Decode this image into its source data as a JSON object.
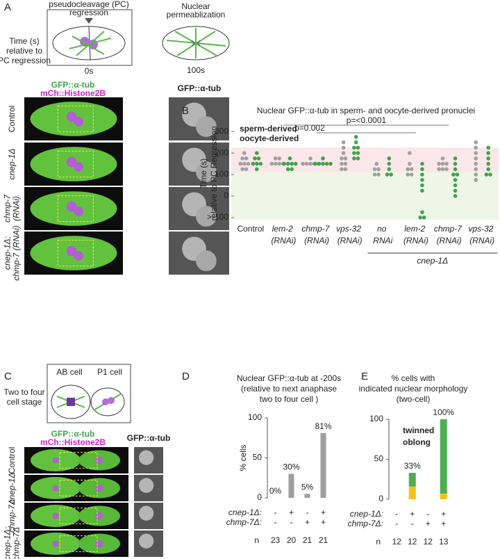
{
  "panel_a": {
    "letter": "A",
    "schematic_left": {
      "title": [
        "pseudocleavage (PC)",
        "regression"
      ],
      "time": "0s"
    },
    "schematic_right": {
      "title": [
        "Nuclear",
        "permeablization"
      ],
      "time": "100s"
    },
    "time_label": [
      "Time (s)",
      "relative to",
      "PC regression"
    ],
    "channel_labels": [
      "GFP::α-tub",
      "mCh::Histone2B"
    ],
    "right_column_label": "GFP::α-tub",
    "rows": [
      [
        "Control"
      ],
      [
        "cnep-1Δ"
      ],
      [
        "chmp-7",
        "(RNAi)"
      ],
      [
        "cnep-1Δ;",
        "chmp-7 (RNAi)"
      ]
    ]
  },
  "panel_c": {
    "letter": "C",
    "schematic": {
      "cells": [
        "AB cell",
        "P1 cell"
      ]
    },
    "stage_label": [
      "Two to four",
      "cell stage"
    ],
    "channel_labels": [
      "GFP::α-tub",
      "mCh::Histone2B"
    ],
    "right_column_label": "GFP::α-tub",
    "rows": [
      [
        "Control"
      ],
      [
        "cnep-1Δ"
      ],
      [
        "chmp-7Δ"
      ],
      [
        "cnep-1Δ;",
        "chmp-7Δ"
      ]
    ]
  },
  "chart_data": [
    {
      "panel": "B",
      "type": "strip",
      "title": "Nuclear GFP::α-tub in sperm- and oocyte-derived pronuclei",
      "ylabel": [
        "Time (s)",
        "relative to PC Regression"
      ],
      "categories": [
        "Control",
        "lem-2 (RNAi)",
        "chmp-7 (RNAi)",
        "vps-32 (RNAi)",
        "no RNAi",
        "lem-2 (RNAi)",
        "chmp-7 (RNAi)",
        "vps-32 (RNAi)"
      ],
      "group": {
        "label": "cnep-1Δ",
        "from": 4,
        "to": 7
      },
      "ylim": [
        -110,
        320
      ],
      "yticks": [
        {
          "value": -100,
          "label": ">-100"
        },
        0,
        100,
        200,
        300
      ],
      "bands": [
        {
          "from": 110,
          "to": 225,
          "color": "#fbe6ea"
        },
        {
          "from": -110,
          "to": 110,
          "color": "#eef6e6"
        }
      ],
      "series": [
        {
          "name": "sperm-derived",
          "color": "#a0a0a0",
          "values": [
            [
              200,
              175,
              175,
              150,
              150,
              150,
              125,
              125
            ],
            [
              175,
              175,
              150,
              150,
              150,
              150
            ],
            [
              175,
              150,
              150,
              150,
              150,
              150
            ],
            [
              250,
              225,
              200,
              175,
              175,
              150,
              150,
              125,
              125
            ],
            [
              150,
              125,
              125,
              100,
              100
            ],
            [
              200,
              150,
              125,
              125,
              100,
              100
            ],
            [
              175,
              150,
              150,
              150,
              125,
              125,
              125
            ],
            [
              250,
              225,
              200,
              175,
              150,
              125,
              100,
              75
            ]
          ]
        },
        {
          "name": "oocyte-derived",
          "color": "#3fa34d",
          "values": [
            [
              200,
              175,
              175,
              150,
              150,
              150,
              125
            ],
            [
              175,
              150,
              150,
              150,
              150,
              125,
              125
            ],
            [
              175,
              150,
              150,
              150,
              150,
              150
            ],
            [
              275,
              250,
              225,
              225,
              200,
              200,
              175,
              175
            ],
            [
              175,
              150,
              125,
              100,
              100
            ],
            [
              150,
              125,
              100,
              75,
              50,
              25,
              -75,
              -100,
              -100
            ],
            [
              175,
              150,
              125,
              100,
              100,
              75,
              50,
              25,
              0
            ],
            [
              225,
              200,
              175,
              150,
              125,
              100,
              100
            ]
          ]
        }
      ],
      "annotations": [
        {
          "text": "p=<0.0001",
          "from": 1,
          "to": 6
        },
        {
          "text": "p=0.002",
          "from": 2,
          "to": 5
        }
      ]
    },
    {
      "panel": "D",
      "type": "bar",
      "title": [
        "Nuclear GFP::α-tub at -200s",
        "(relative to next anaphase",
        "two to four cell )"
      ],
      "ylabel": "% cells",
      "categories": [
        null,
        null,
        null,
        null
      ],
      "values": [
        0,
        30,
        5,
        81
      ],
      "value_labels": [
        "0%",
        "30%",
        "5%",
        "81%"
      ],
      "color": "#9e9e9e",
      "ylim": [
        0,
        100
      ],
      "yticks": [
        0,
        50,
        100
      ],
      "genotypes": [
        {
          "label": "cnep-1Δ:",
          "marks": [
            "-",
            "+",
            "-",
            "+"
          ]
        },
        {
          "label": "chmp-7Δ:",
          "marks": [
            "-",
            "-",
            "+",
            "+"
          ]
        }
      ],
      "n_label": "n",
      "n": [
        23,
        20,
        21,
        21
      ]
    },
    {
      "panel": "E",
      "type": "stacked_bar",
      "title": [
        "% cells with",
        "indicated nuclear morphology",
        "(two-cell)"
      ],
      "categories": [
        null,
        null,
        null,
        null
      ],
      "series": [
        {
          "name": "oblong",
          "color": "#f2c21b",
          "values": [
            0,
            16,
            0,
            7
          ]
        },
        {
          "name": "twinned",
          "color": "#4caf50",
          "values": [
            0,
            17,
            0,
            93
          ]
        }
      ],
      "ylim": [
        0,
        100
      ],
      "yticks": [
        0,
        50,
        100
      ],
      "annotations": [
        {
          "text": "33%",
          "category": 1,
          "value": 33
        },
        {
          "text": "100%",
          "category": 3,
          "value": 100
        }
      ],
      "genotypes": [
        {
          "label": "cnep-1Δ:",
          "marks": [
            "-",
            "+",
            "-",
            "+"
          ]
        },
        {
          "label": "chmp-7Δ:",
          "marks": [
            "-",
            "-",
            "+",
            "+"
          ]
        }
      ],
      "n_label": "n",
      "n": [
        12,
        12,
        12,
        13
      ]
    }
  ]
}
